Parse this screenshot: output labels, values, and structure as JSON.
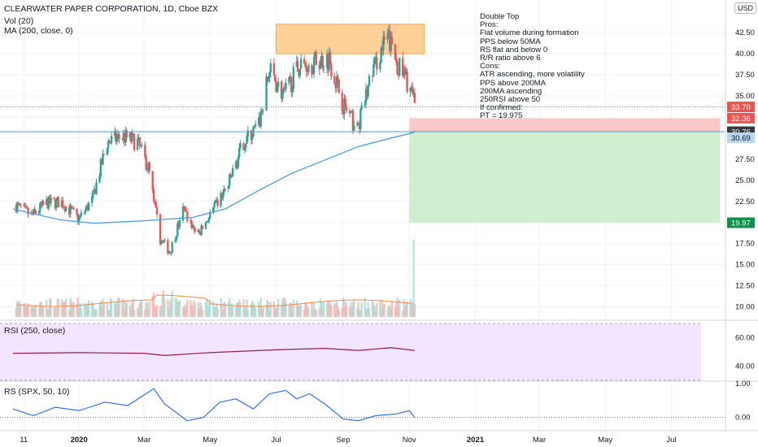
{
  "header": {
    "title": "CLEARWATER PAPER CORPORATION, 1D, Cboe BZX",
    "vol_label": "Vol (20)",
    "ma_label": "MA (200, close, 0)",
    "rsi_label": "RSI (250, close)",
    "rs_label": "RS (SPX, 50, 10)",
    "currency": "USD"
  },
  "notes": [
    "Double Top",
    "Pros:",
    "Flat volume during formation",
    "PPS below 50MA",
    "RS flat and below 0",
    "R/R ratio above 6",
    "Cons:",
    "ATR ascending, more volatility",
    "PPS above 200MA",
    "200MA ascending",
    "250RSI above 50",
    "",
    "If confirmed:",
    "PT = 19.975"
  ],
  "colors": {
    "up": "#26a69a",
    "down": "#ef5350",
    "ma": "#4a9fd4",
    "rsi": "#8e1f4f",
    "rs": "#2962ff",
    "rsi_band": "#f3e5ff",
    "stop_zone": "#f9c8c8",
    "target_zone": "#cfeecf",
    "top_box": "#ffd199",
    "price_tag": "#ef5350",
    "target_tag": "#0e8f4a",
    "level_tag": "#363a45",
    "ma_tag": "#b9d7ee"
  },
  "chart_data": {
    "type": "candlestick",
    "title": "CLEARWATER PAPER CORPORATION, 1D, Cboe BZX",
    "x_ticks": [
      "11",
      "2020",
      "Mar",
      "May",
      "Jul",
      "Sep",
      "Nov",
      "2021",
      "Mar",
      "May",
      "Jul"
    ],
    "x_tick_dates": [
      "2019-11-11",
      "2020-01-01",
      "2020-03-01",
      "2020-05-01",
      "2020-07-01",
      "2020-09-01",
      "2020-11-01",
      "2021-01-01",
      "2021-03-01",
      "2021-05-01",
      "2021-07-01"
    ],
    "y_ticks": [
      10.0,
      12.5,
      15.0,
      17.5,
      20.0,
      22.5,
      25.0,
      27.5,
      30.0,
      32.5,
      35.0,
      37.5,
      40.0,
      42.5
    ],
    "y_tick_labels": [
      "10.00",
      "12.50",
      "15.00",
      "17.50",
      "20.00",
      "22.50",
      "25.00",
      "27.50",
      "30.00",
      "32.50",
      "35.00",
      "37.50",
      "40.00",
      "42.50"
    ],
    "ylim": [
      8.8,
      45.6
    ],
    "price_series": [
      [
        "2019-11-04",
        22.0
      ],
      [
        "2019-11-18",
        20.8
      ],
      [
        "2019-12-02",
        22.3
      ],
      [
        "2019-12-16",
        22.4
      ],
      [
        "2020-01-01",
        20.4
      ],
      [
        "2020-01-13",
        22.6
      ],
      [
        "2020-01-27",
        29.5
      ],
      [
        "2020-02-10",
        30.2
      ],
      [
        "2020-02-24",
        29.5
      ],
      [
        "2020-03-05",
        26.5
      ],
      [
        "2020-03-16",
        18.0
      ],
      [
        "2020-03-25",
        16.5
      ],
      [
        "2020-04-06",
        21.5
      ],
      [
        "2020-04-20",
        18.5
      ],
      [
        "2020-05-04",
        21.5
      ],
      [
        "2020-05-18",
        24.5
      ],
      [
        "2020-06-01",
        29.5
      ],
      [
        "2020-06-15",
        31.5
      ],
      [
        "2020-06-25",
        38.0
      ],
      [
        "2020-07-08",
        35.0
      ],
      [
        "2020-07-22",
        38.5
      ],
      [
        "2020-08-05",
        39.0
      ],
      [
        "2020-08-19",
        39.5
      ],
      [
        "2020-09-01",
        34.0
      ],
      [
        "2020-09-14",
        31.0
      ],
      [
        "2020-09-28",
        38.0
      ],
      [
        "2020-10-12",
        42.0
      ],
      [
        "2020-10-22",
        38.5
      ],
      [
        "2020-11-02",
        36.0
      ],
      [
        "2020-11-06",
        33.7
      ]
    ],
    "ma200_series": [
      [
        "2019-11-01",
        21.6
      ],
      [
        "2019-12-15",
        20.3
      ],
      [
        "2020-01-15",
        19.9
      ],
      [
        "2020-03-01",
        20.2
      ],
      [
        "2020-04-15",
        20.6
      ],
      [
        "2020-05-15",
        21.6
      ],
      [
        "2020-06-15",
        23.8
      ],
      [
        "2020-07-15",
        25.8
      ],
      [
        "2020-08-15",
        27.4
      ],
      [
        "2020-09-15",
        29.0
      ],
      [
        "2020-10-15",
        30.0
      ],
      [
        "2020-11-06",
        30.7
      ]
    ],
    "volume_note": "volume histogram with 20-period average shown behind price, with a spike near 2020-11-05",
    "levels": {
      "last_price": 33.7,
      "last_price_label": "33.70",
      "stop": 32.36,
      "stop_label": "32.36",
      "entry": 30.76,
      "entry_label": "30.76",
      "ma200": 30.69,
      "ma200_label": "30.69",
      "target": 19.97,
      "target_label": "19.97"
    },
    "zones": {
      "double_top_box": {
        "x_start": "2020-07-01",
        "x_end": "2020-11-15",
        "y_low": 40.0,
        "y_high": 43.5
      },
      "stop_zone": {
        "x_start": "2020-11-01",
        "x_end": "2021-08-15",
        "y_low": 30.76,
        "y_high": 32.36
      },
      "target_zone": {
        "x_start": "2020-11-01",
        "x_end": "2021-08-15",
        "y_low": 19.97,
        "y_high": 30.76
      }
    },
    "rsi": {
      "title": "RSI (250, close)",
      "y_ticks": [
        40.0,
        60.0
      ],
      "y_tick_labels": [
        "40.00",
        "60.00"
      ],
      "ylim": [
        30,
        70
      ],
      "band": [
        30,
        70
      ],
      "series": [
        [
          "2019-11-01",
          49.0
        ],
        [
          "2020-01-01",
          49.5
        ],
        [
          "2020-03-01",
          49.0
        ],
        [
          "2020-03-20",
          47.5
        ],
        [
          "2020-05-01",
          49.5
        ],
        [
          "2020-07-01",
          51.5
        ],
        [
          "2020-08-15",
          52.5
        ],
        [
          "2020-09-15",
          51.0
        ],
        [
          "2020-10-15",
          53.0
        ],
        [
          "2020-11-06",
          51.0
        ]
      ]
    },
    "rs": {
      "title": "RS (SPX, 50, 10)",
      "y_ticks": [
        0.0,
        1.0
      ],
      "y_tick_labels": [
        "0.00",
        "1.00"
      ],
      "ylim": [
        -0.35,
        1.05
      ],
      "series": [
        [
          "2019-11-01",
          0.25
        ],
        [
          "2019-11-20",
          0.05
        ],
        [
          "2019-12-10",
          0.3
        ],
        [
          "2020-01-01",
          0.2
        ],
        [
          "2020-01-25",
          0.45
        ],
        [
          "2020-02-15",
          0.35
        ],
        [
          "2020-03-10",
          0.85
        ],
        [
          "2020-03-20",
          0.4
        ],
        [
          "2020-04-10",
          -0.1
        ],
        [
          "2020-04-25",
          0.0
        ],
        [
          "2020-05-10",
          0.45
        ],
        [
          "2020-05-25",
          0.55
        ],
        [
          "2020-06-10",
          0.25
        ],
        [
          "2020-06-25",
          0.7
        ],
        [
          "2020-07-10",
          0.8
        ],
        [
          "2020-07-20",
          0.55
        ],
        [
          "2020-08-01",
          0.7
        ],
        [
          "2020-08-15",
          0.4
        ],
        [
          "2020-09-01",
          -0.05
        ],
        [
          "2020-09-15",
          -0.1
        ],
        [
          "2020-10-01",
          0.05
        ],
        [
          "2020-10-20",
          0.1
        ],
        [
          "2020-11-01",
          0.2
        ],
        [
          "2020-11-06",
          0.0
        ]
      ]
    },
    "x_range": [
      "2019-10-20",
      "2021-08-20"
    ],
    "grid": true
  }
}
